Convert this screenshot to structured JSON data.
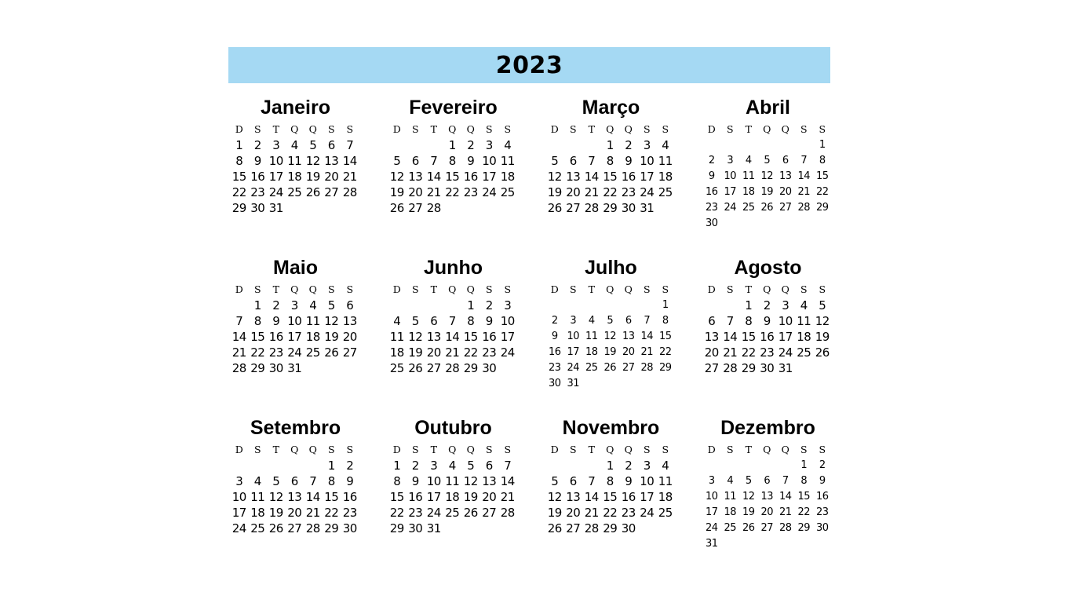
{
  "year": "2023",
  "weekdays": [
    "D",
    "S",
    "T",
    "Q",
    "Q",
    "S",
    "S"
  ],
  "months": [
    {
      "name": "Janeiro",
      "offset": 0,
      "days": 31
    },
    {
      "name": "Fevereiro",
      "offset": 3,
      "days": 28
    },
    {
      "name": "Março",
      "offset": 3,
      "days": 31
    },
    {
      "name": "Abril",
      "offset": 6,
      "days": 30
    },
    {
      "name": "Maio",
      "offset": 1,
      "days": 31
    },
    {
      "name": "Junho",
      "offset": 4,
      "days": 30
    },
    {
      "name": "Julho",
      "offset": 6,
      "days": 31
    },
    {
      "name": "Agosto",
      "offset": 2,
      "days": 31
    },
    {
      "name": "Setembro",
      "offset": 5,
      "days": 30
    },
    {
      "name": "Outubro",
      "offset": 0,
      "days": 31
    },
    {
      "name": "Novembro",
      "offset": 3,
      "days": 30
    },
    {
      "name": "Dezembro",
      "offset": 5,
      "days": 31
    }
  ]
}
